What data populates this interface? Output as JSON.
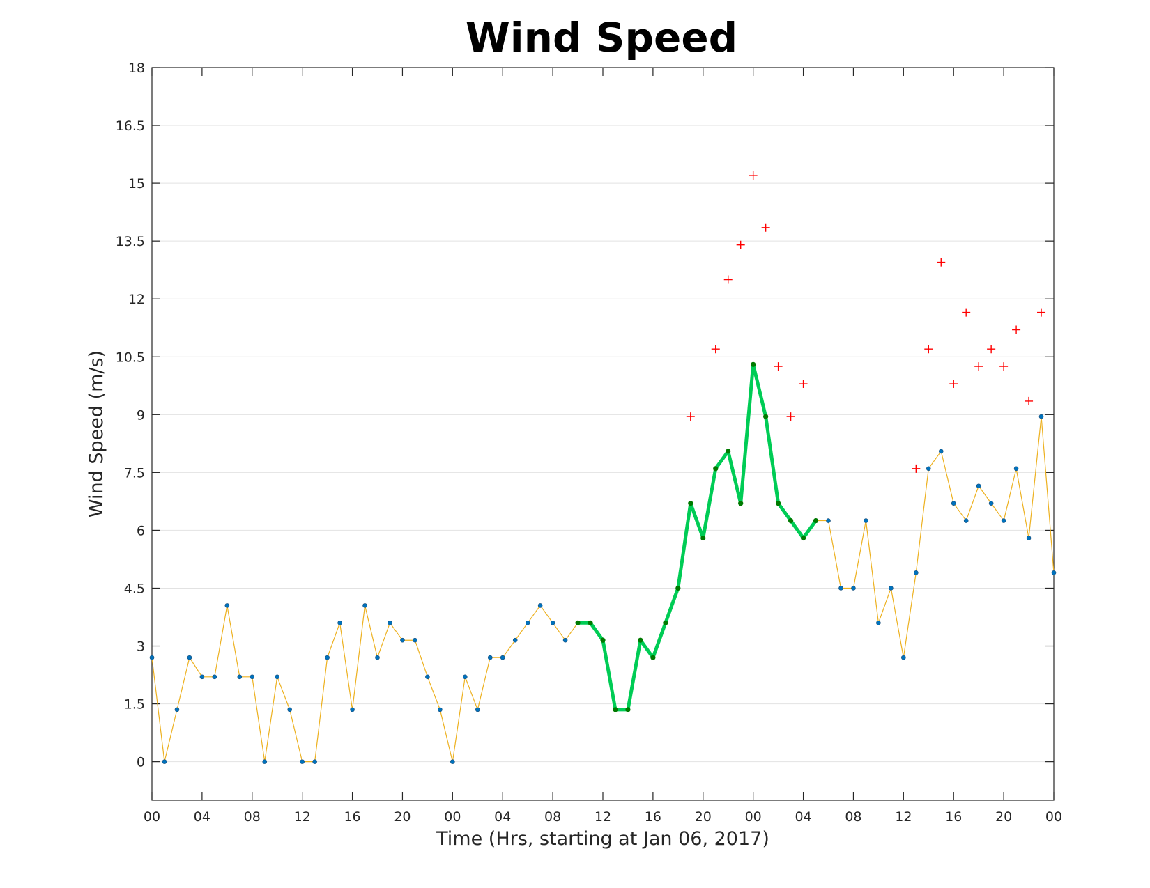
{
  "chart_data": {
    "type": "line",
    "title": "Wind Speed",
    "xlabel": "Time (Hrs, starting at Jan 06, 2017)",
    "ylabel": "Wind Speed (m/s)",
    "xlim": [
      0,
      72
    ],
    "ylim": [
      -1,
      18
    ],
    "yticks": [
      0,
      1.5,
      3,
      4.5,
      6,
      7.5,
      9,
      10.5,
      12,
      13.5,
      15,
      16.5,
      18
    ],
    "xtick_positions": [
      0,
      4,
      8,
      12,
      16,
      20,
      24,
      28,
      32,
      36,
      40,
      44,
      48,
      52,
      56,
      60,
      64,
      68,
      72
    ],
    "xtick_labels": [
      "00",
      "04",
      "08",
      "12",
      "16",
      "20",
      "00",
      "04",
      "08",
      "12",
      "16",
      "20",
      "00",
      "04",
      "08",
      "12",
      "16",
      "20",
      "00"
    ],
    "grid": "horizontal",
    "colors": {
      "line": "#EDB120",
      "marker": "#0072BD",
      "highlight_line": "#00CC55",
      "highlight_marker": "#007A00",
      "outlier": "#FF0000"
    },
    "series": [
      {
        "style": "thin-line-with-markers",
        "x": [
          0,
          1,
          2,
          3,
          4,
          5,
          6,
          7,
          8,
          9,
          10,
          11,
          12,
          13,
          14,
          15,
          16,
          17,
          18,
          19,
          20,
          21,
          22,
          23,
          24,
          25,
          26,
          27,
          28,
          29,
          30,
          31,
          32,
          33,
          34,
          35,
          36,
          37,
          38,
          39,
          40,
          41,
          42,
          43,
          44,
          45,
          46,
          47,
          48,
          49,
          50,
          51,
          52,
          53,
          54,
          55,
          56,
          57,
          58,
          59,
          60,
          61,
          62,
          63,
          64,
          65,
          66,
          67,
          68,
          69,
          70,
          71,
          72
        ],
        "y": [
          2.7,
          0,
          1.35,
          2.7,
          2.2,
          2.2,
          4.05,
          2.2,
          2.2,
          0,
          2.2,
          1.35,
          0,
          0,
          2.7,
          3.6,
          1.35,
          4.05,
          2.7,
          3.6,
          3.15,
          3.15,
          2.2,
          1.35,
          0,
          2.2,
          1.35,
          2.7,
          2.7,
          3.15,
          3.6,
          4.05,
          3.6,
          3.15,
          3.6,
          3.6,
          3.15,
          1.35,
          1.35,
          3.15,
          2.7,
          3.6,
          4.5,
          6.7,
          5.8,
          7.6,
          8.05,
          6.7,
          10.3,
          8.95,
          6.7,
          6.25,
          5.8,
          6.25,
          6.25,
          4.5,
          4.5,
          6.25,
          3.6,
          4.5,
          2.7,
          4.9,
          7.6,
          8.05,
          6.7,
          6.25,
          7.15,
          6.7,
          6.25,
          7.6,
          5.8,
          8.95,
          4.9
        ]
      },
      {
        "style": "thick-line-with-markers",
        "x": [
          34,
          35,
          36,
          37,
          38,
          39,
          40,
          41,
          42,
          43,
          44,
          45,
          46,
          47,
          48,
          49,
          50,
          51,
          52,
          53
        ],
        "y": [
          3.6,
          3.6,
          3.15,
          1.35,
          1.35,
          3.15,
          2.7,
          3.6,
          4.5,
          6.7,
          5.8,
          7.6,
          8.05,
          6.7,
          10.3,
          8.95,
          6.7,
          6.25,
          5.8,
          6.25
        ]
      },
      {
        "style": "plus-markers",
        "x": [
          43,
          45,
          46,
          47,
          48,
          49,
          50,
          51,
          52,
          61,
          62,
          63,
          64,
          65,
          66,
          67,
          68,
          69,
          70,
          71
        ],
        "y": [
          8.95,
          10.7,
          12.5,
          13.4,
          15.2,
          13.85,
          10.25,
          8.95,
          9.8,
          7.6,
          10.7,
          12.95,
          9.8,
          11.65,
          10.25,
          10.7,
          10.25,
          11.2,
          9.35,
          11.65
        ]
      }
    ]
  }
}
